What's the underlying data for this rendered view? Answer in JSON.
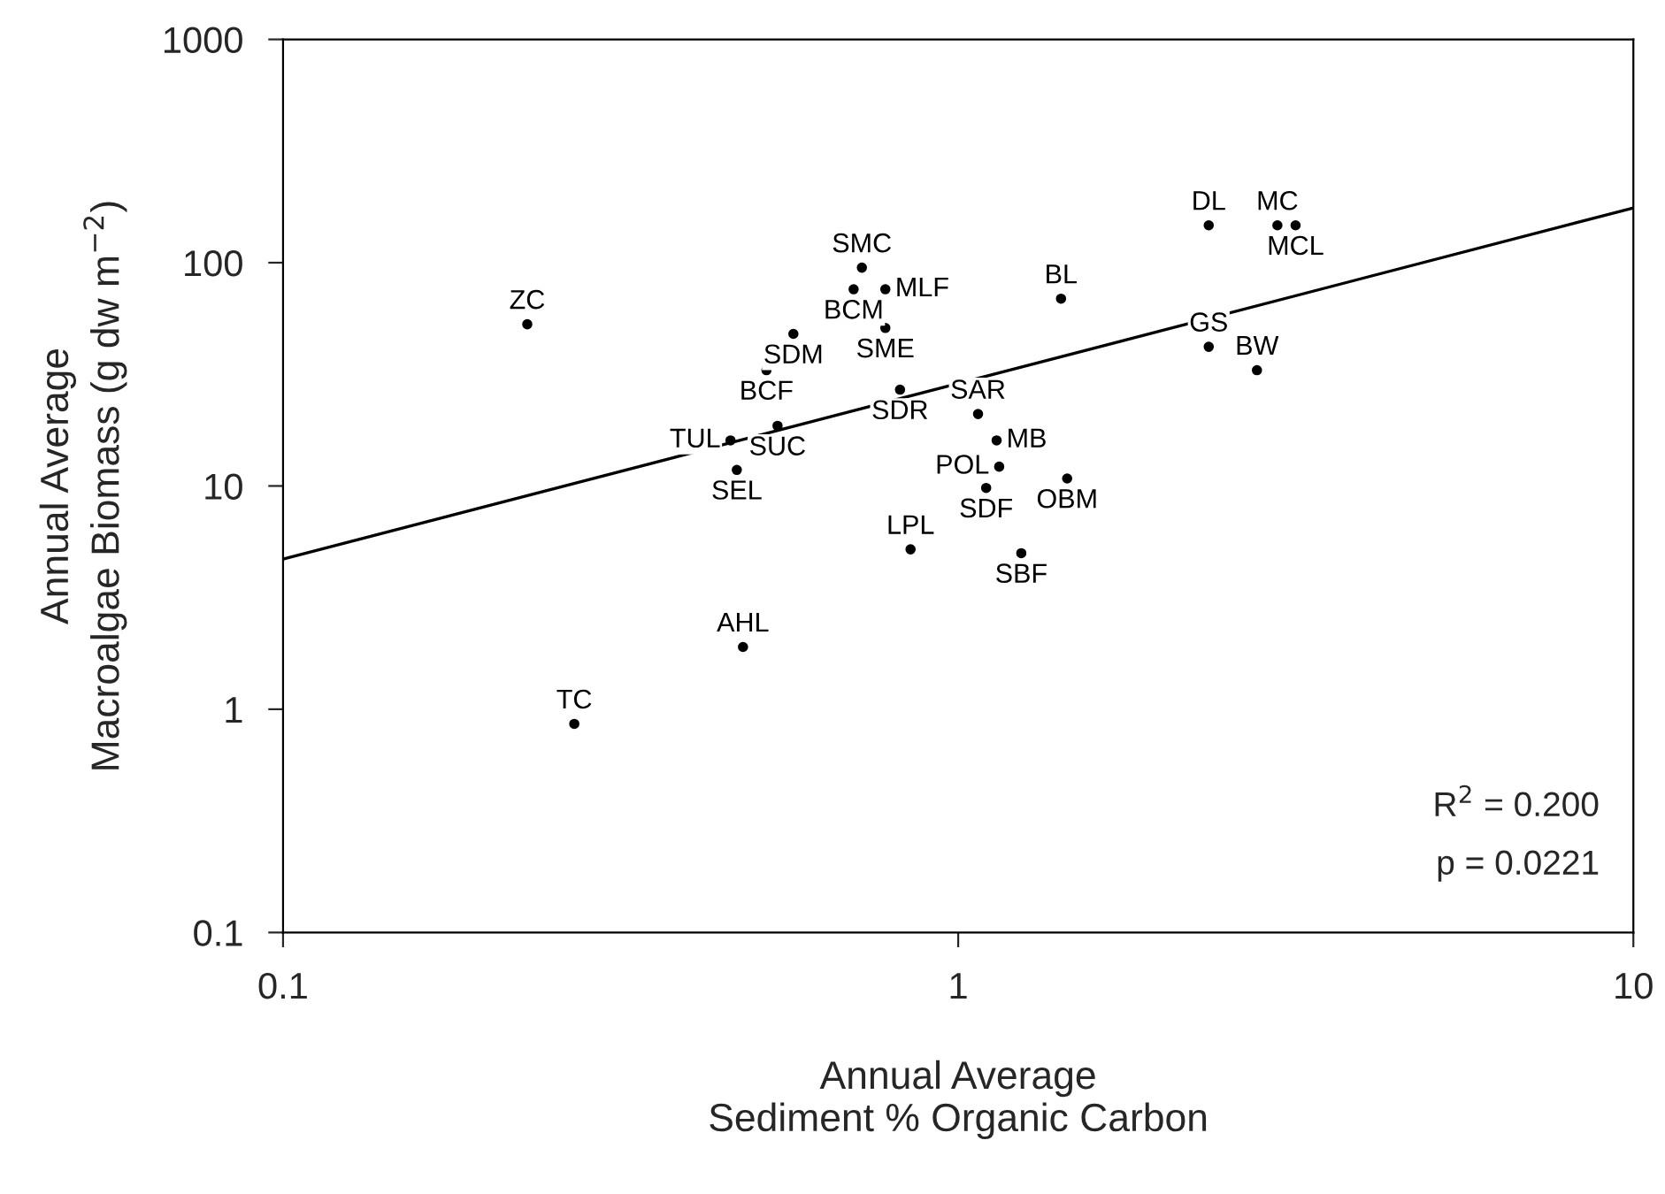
{
  "chart_data": {
    "type": "scatter",
    "xlabel": "Annual Average\nSediment % Organic Carbon",
    "ylabel": "Annual Average\nMacroalgae Biomass (g dw m$^{−2}$)",
    "log": "xy",
    "grid": false,
    "legend": false,
    "xlim": [
      0.1,
      10
    ],
    "xticks": [
      0.1,
      1,
      10
    ],
    "ylim": [
      0.1,
      1000
    ],
    "yticks": [
      0.1,
      1,
      10,
      100,
      1000
    ],
    "series": [
      {
        "color": "#000000",
        "marker": "circle",
        "x": [
          0.23,
          0.72,
          0.7,
          0.78,
          0.78,
          0.57,
          0.52,
          0.82,
          1.07,
          1.14,
          0.54,
          0.46,
          0.47,
          1.15,
          1.1,
          1.45,
          0.85,
          1.24,
          1.42,
          2.35,
          2.97,
          3.16,
          2.35,
          2.77,
          0.48,
          0.27
        ],
        "values": [
          53,
          95,
          76,
          76,
          51,
          48,
          33,
          27,
          21,
          16,
          18.6,
          16,
          11.8,
          12.2,
          9.8,
          10.8,
          5.2,
          5.0,
          69,
          147,
          147,
          147,
          42,
          33,
          1.9,
          0.86
        ],
        "value_labels": [
          "ZC",
          "SMC",
          "BCM",
          "MLF",
          "SME",
          "SDM",
          "BCF",
          "SDR",
          "SAR",
          "MB",
          "SUC",
          "TUL",
          "SEL",
          "POL",
          "SDF",
          "OBM",
          "LPL",
          "SBF",
          "BL",
          "DL",
          "MC",
          "MCL",
          "GS",
          "BW",
          "AHL",
          "TC"
        ]
      },
      {
        "type": "line",
        "color": "#000000",
        "x": [
          0.1,
          10
        ],
        "values": [
          4.7,
          176
        ],
        "line_style": "solid"
      }
    ],
    "annotations": [
      "R$^{2}$ = 0.200",
      "p = 0.0221"
    ]
  }
}
